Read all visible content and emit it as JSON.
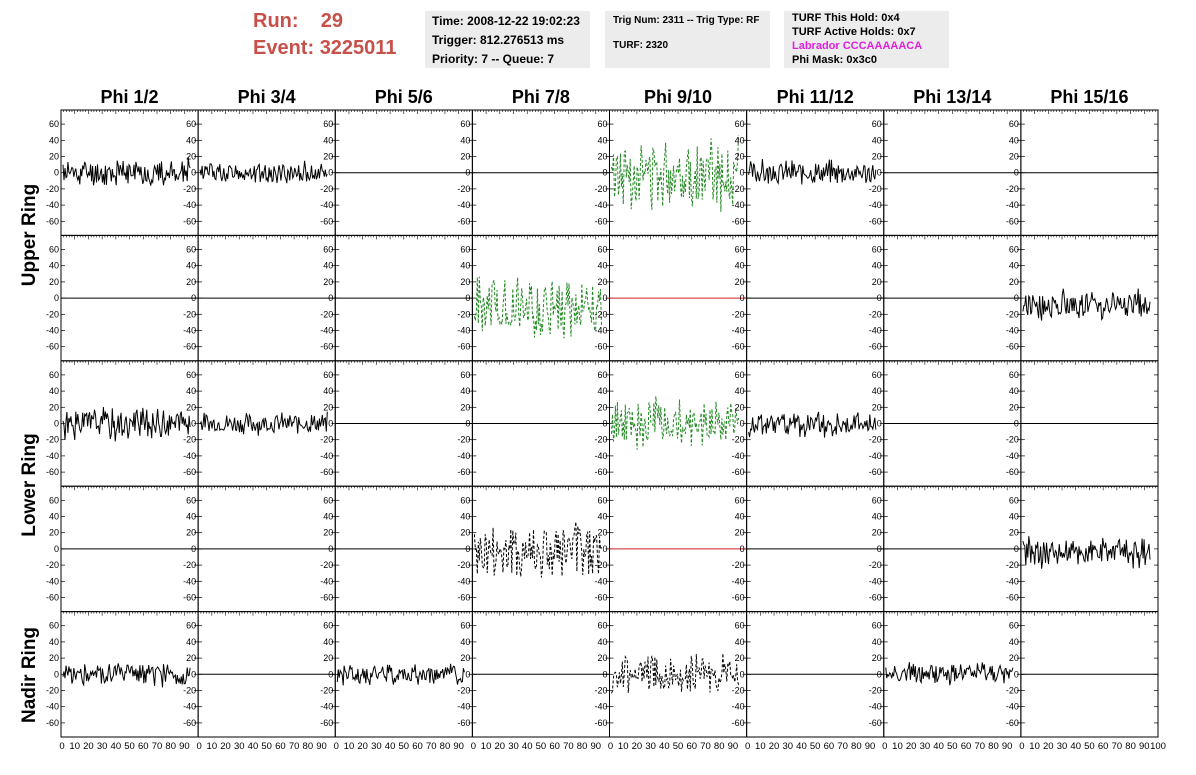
{
  "run": {
    "run_label": "Run:",
    "run_value": "29",
    "event_label": "Event:",
    "event_value": "3225011"
  },
  "time_box": {
    "time": "Time: 2008-12-22 19:02:23",
    "trigger": "Trigger: 812.276513 ms",
    "priority": "Priority: 7 -- Queue: 7"
  },
  "trig_box": {
    "trig": "Trig Num: 2311 -- Trig Type: RF",
    "turf": "TURF: 2320"
  },
  "turf_box": {
    "this_hold": "TURF This Hold: 0x4",
    "active_holds": "TURF Active Holds: 0x7",
    "labrador": "Labrador CCCAAAAACA",
    "phi_mask": "Phi Mask: 0x3c0"
  },
  "phi_headers": [
    "Phi 1/2",
    "Phi 3/4",
    "Phi 5/6",
    "Phi 7/8",
    "Phi 9/10",
    "Phi 11/12",
    "Phi 13/14",
    "Phi 15/16"
  ],
  "ring_labels": {
    "upper": "Upper Ring",
    "lower": "Lower Ring",
    "nadir": "Nadir Ring"
  },
  "colors": {
    "run_text": "#c8504a",
    "magenta": "#e020e0",
    "green_trace": "#228822",
    "black_trace": "#000000",
    "red_trace": "#cc2222",
    "box_bg": "#ececec"
  },
  "chart_data": {
    "type": "line",
    "rows": 5,
    "cols": 8,
    "ylim": [
      -70,
      70
    ],
    "y_ticks": [
      -60,
      -40,
      -20,
      0,
      20,
      40,
      60
    ],
    "y_tick_labels": [
      "-60",
      "-40",
      "-20",
      "0",
      "20",
      "40",
      "60"
    ],
    "xlim": [
      0,
      100
    ],
    "x_tick_labels": [
      "0",
      "10",
      "20",
      "30",
      "40",
      "50",
      "60",
      "70",
      "80",
      "90",
      "100"
    ],
    "panels": [
      {
        "row": 0,
        "col": 0,
        "style": "wave",
        "color": "black",
        "amplitude": 18,
        "seed": 11
      },
      {
        "row": 0,
        "col": 1,
        "style": "wave",
        "color": "black",
        "amplitude": 14,
        "seed": 12
      },
      {
        "row": 0,
        "col": 2,
        "style": "flat",
        "color": "black"
      },
      {
        "row": 0,
        "col": 3,
        "style": "flat",
        "color": "black"
      },
      {
        "row": 0,
        "col": 4,
        "style": "wave",
        "color": "green",
        "dashed": true,
        "amplitude": 45,
        "seed": 13
      },
      {
        "row": 0,
        "col": 5,
        "style": "wave",
        "color": "black",
        "amplitude": 16,
        "seed": 14
      },
      {
        "row": 0,
        "col": 6,
        "style": "flat",
        "color": "black"
      },
      {
        "row": 0,
        "col": 7,
        "style": "flat",
        "color": "black"
      },
      {
        "row": 1,
        "col": 0,
        "style": "flat",
        "color": "black"
      },
      {
        "row": 1,
        "col": 1,
        "style": "flat",
        "color": "black"
      },
      {
        "row": 1,
        "col": 2,
        "style": "flat",
        "color": "black"
      },
      {
        "row": 1,
        "col": 3,
        "style": "wave",
        "color": "green",
        "dashed": true,
        "amplitude": 40,
        "offset": -10,
        "seed": 21
      },
      {
        "row": 1,
        "col": 4,
        "style": "flat",
        "color": "red"
      },
      {
        "row": 1,
        "col": 5,
        "style": "flat",
        "color": "black"
      },
      {
        "row": 1,
        "col": 6,
        "style": "flat",
        "color": "black"
      },
      {
        "row": 1,
        "col": 7,
        "style": "wave",
        "color": "black",
        "amplitude": 20,
        "offset": -8,
        "seed": 22
      },
      {
        "row": 2,
        "col": 0,
        "style": "wave",
        "color": "black",
        "amplitude": 22,
        "seed": 31
      },
      {
        "row": 2,
        "col": 1,
        "style": "wave",
        "color": "black",
        "amplitude": 14,
        "seed": 32
      },
      {
        "row": 2,
        "col": 2,
        "style": "flat",
        "color": "black"
      },
      {
        "row": 2,
        "col": 3,
        "style": "flat",
        "color": "black"
      },
      {
        "row": 2,
        "col": 4,
        "style": "wave",
        "color": "green",
        "dashed": true,
        "amplitude": 32,
        "seed": 33
      },
      {
        "row": 2,
        "col": 5,
        "style": "wave",
        "color": "black",
        "amplitude": 17,
        "seed": 34
      },
      {
        "row": 2,
        "col": 6,
        "style": "flat",
        "color": "black"
      },
      {
        "row": 2,
        "col": 7,
        "style": "flat",
        "color": "black"
      },
      {
        "row": 3,
        "col": 0,
        "style": "flat",
        "color": "black"
      },
      {
        "row": 3,
        "col": 1,
        "style": "flat",
        "color": "black"
      },
      {
        "row": 3,
        "col": 2,
        "style": "flat",
        "color": "black"
      },
      {
        "row": 3,
        "col": 3,
        "style": "wave",
        "color": "black",
        "dashed": true,
        "amplitude": 40,
        "offset": -5,
        "seed": 41
      },
      {
        "row": 3,
        "col": 4,
        "style": "flat",
        "color": "red"
      },
      {
        "row": 3,
        "col": 5,
        "style": "flat",
        "color": "black"
      },
      {
        "row": 3,
        "col": 6,
        "style": "flat",
        "color": "black"
      },
      {
        "row": 3,
        "col": 7,
        "style": "wave",
        "color": "black",
        "amplitude": 20,
        "offset": -4,
        "seed": 42
      },
      {
        "row": 4,
        "col": 0,
        "style": "wave",
        "color": "black",
        "amplitude": 16,
        "seed": 51
      },
      {
        "row": 4,
        "col": 1,
        "style": "flat",
        "color": "black"
      },
      {
        "row": 4,
        "col": 2,
        "style": "wave",
        "color": "black",
        "amplitude": 14,
        "seed": 52
      },
      {
        "row": 4,
        "col": 3,
        "style": "flat",
        "color": "black"
      },
      {
        "row": 4,
        "col": 4,
        "style": "wave",
        "color": "black",
        "dashed": true,
        "amplitude": 26,
        "seed": 53
      },
      {
        "row": 4,
        "col": 5,
        "style": "flat",
        "color": "black"
      },
      {
        "row": 4,
        "col": 6,
        "style": "wave",
        "color": "black",
        "amplitude": 15,
        "seed": 54
      },
      {
        "row": 4,
        "col": 7,
        "style": "flat",
        "color": "black"
      }
    ]
  }
}
